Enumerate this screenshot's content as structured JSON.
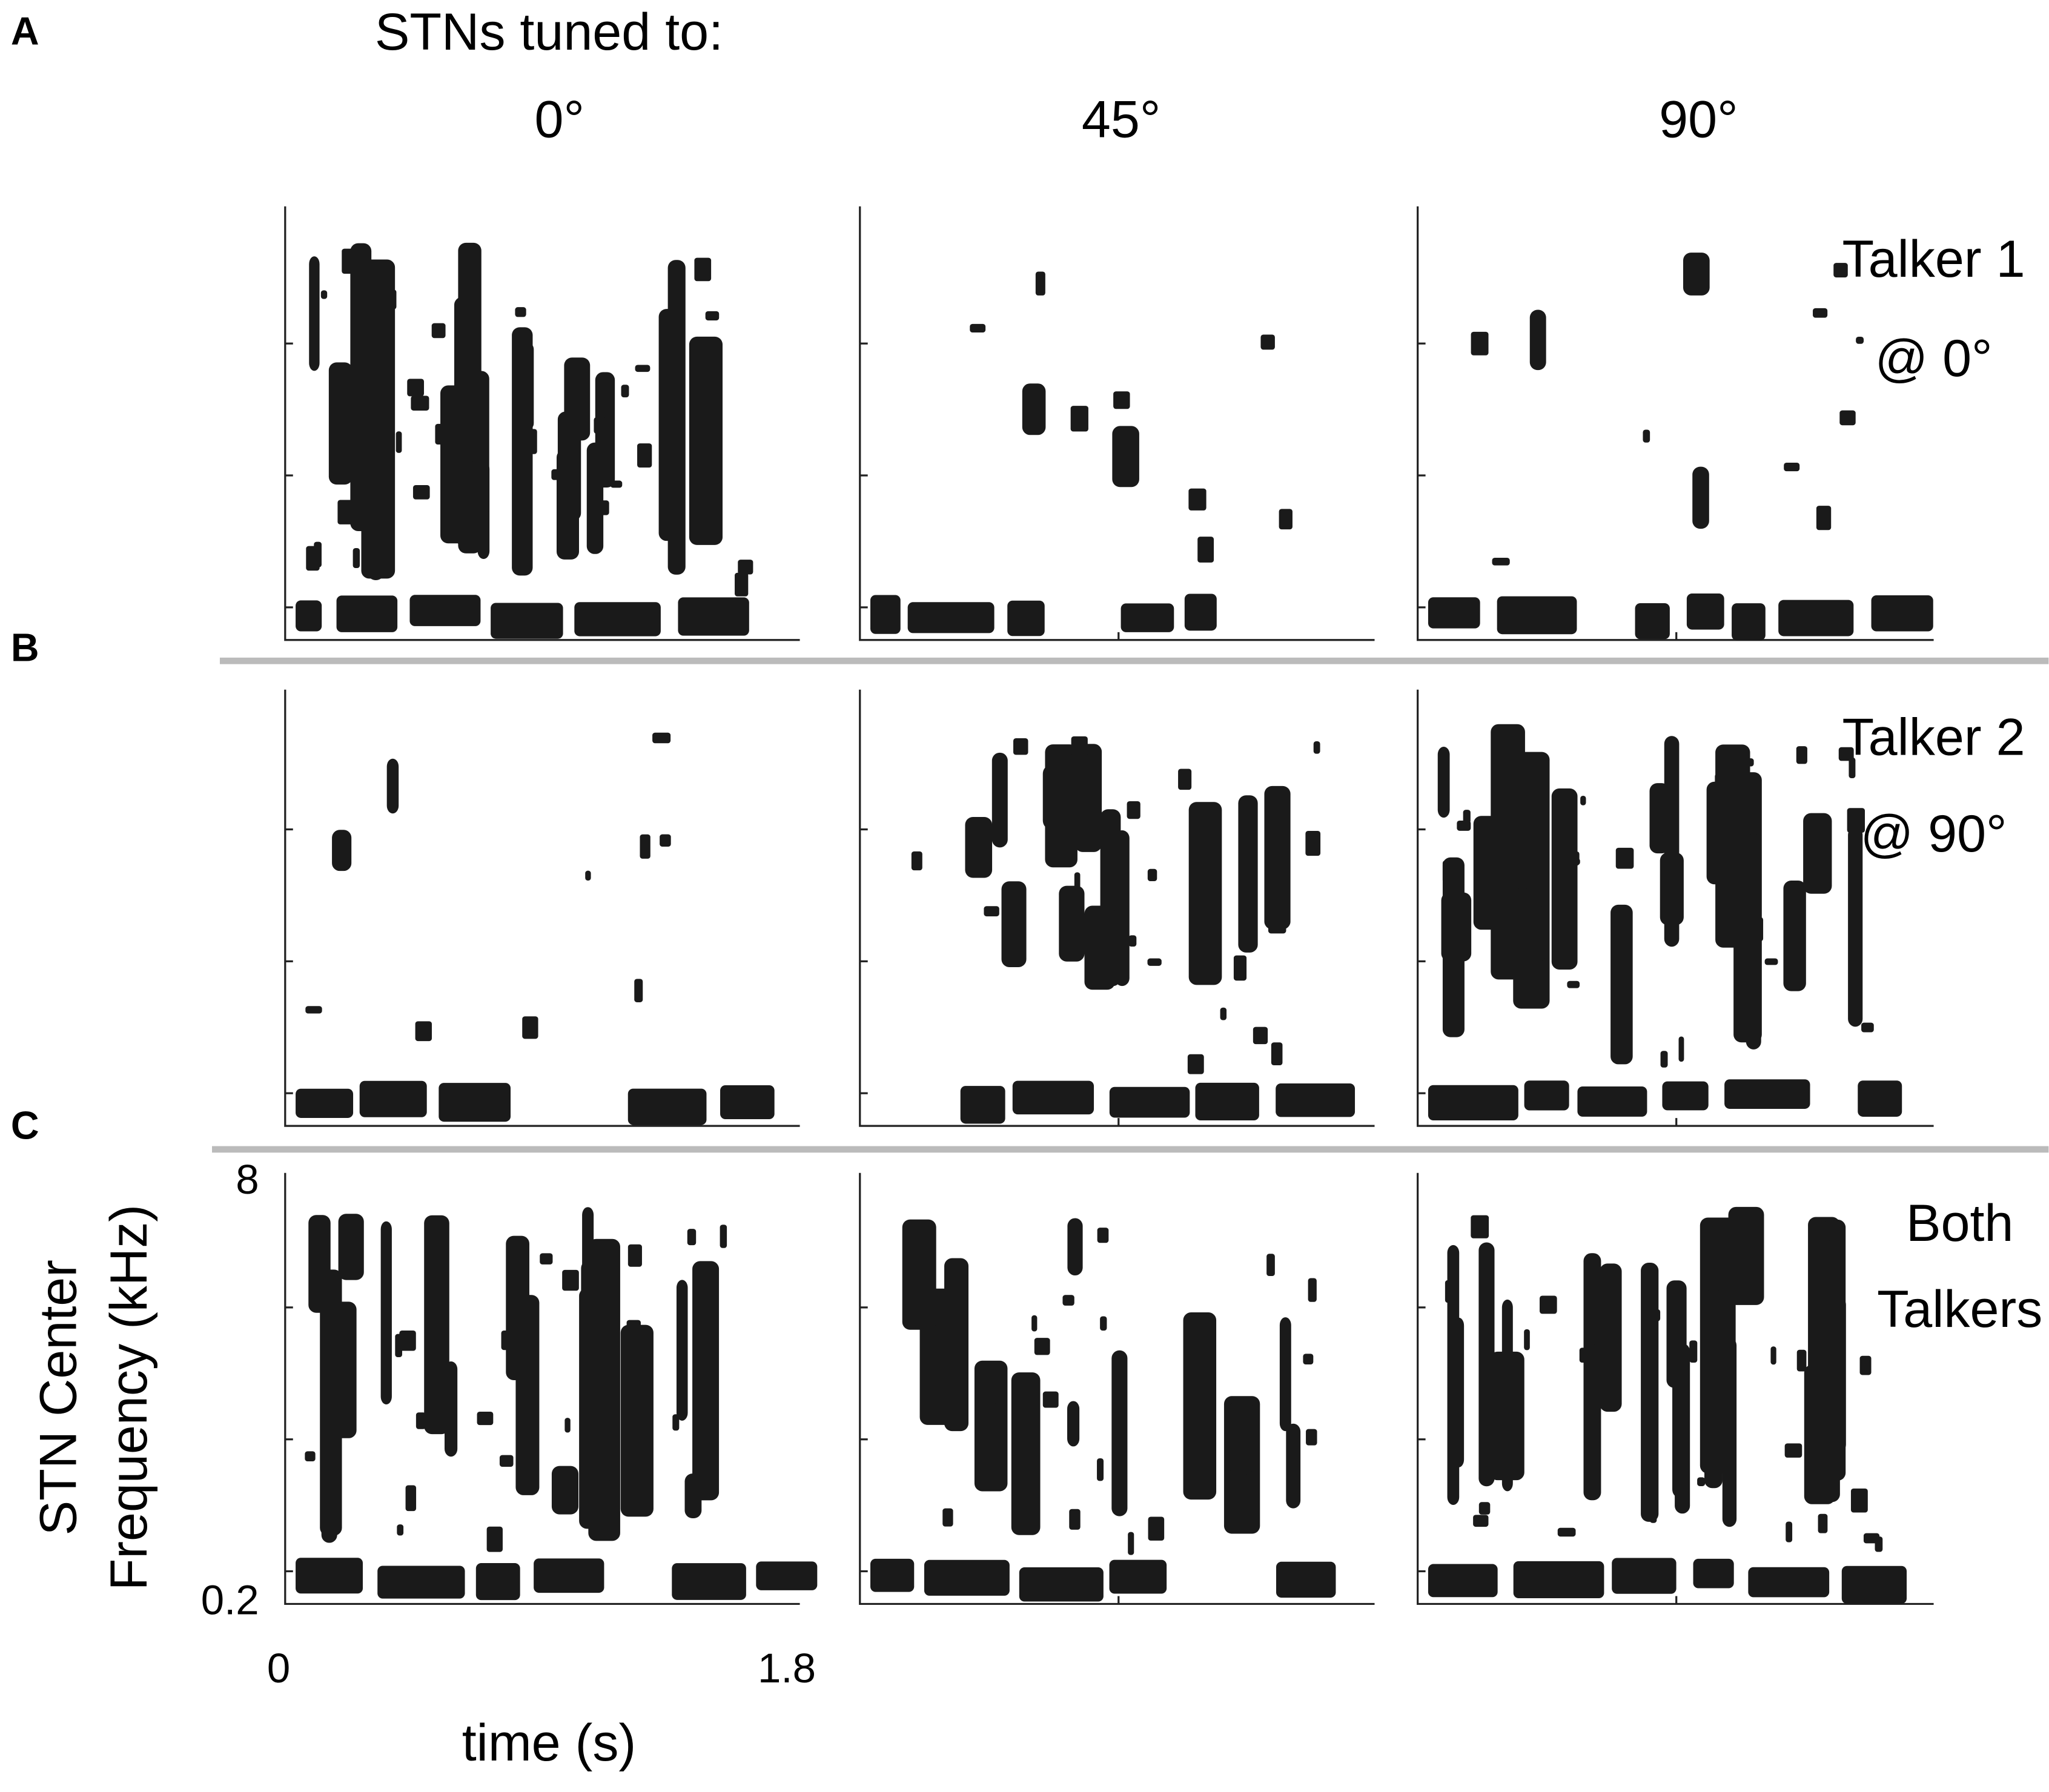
{
  "header": {
    "title": "STNs tuned to:",
    "columns": [
      "0°",
      "45°",
      "90°"
    ]
  },
  "panels": [
    {
      "letter": "A",
      "row_label": [
        "Talker 1",
        "@ 0°"
      ]
    },
    {
      "letter": "B",
      "row_label": [
        "Talker 2",
        "@ 90°"
      ]
    },
    {
      "letter": "C",
      "row_label": [
        "Both",
        "Talkers"
      ]
    }
  ],
  "y_axis": {
    "label": [
      "STN Center",
      "Frequency (kHz)"
    ],
    "top": "8",
    "bottom": "0.2"
  },
  "x_axis": {
    "label": "time (s)",
    "start": "0",
    "end": "1.8"
  }
}
